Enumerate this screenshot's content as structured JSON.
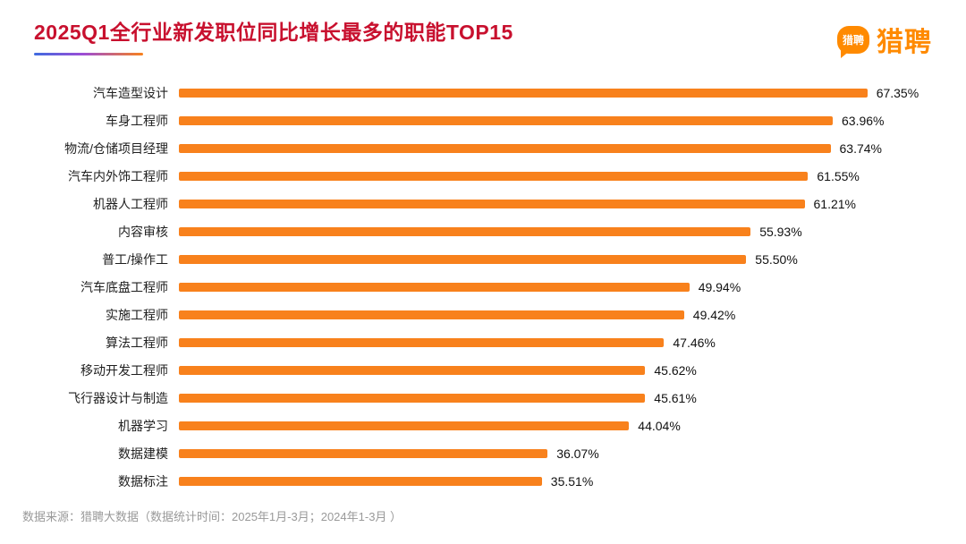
{
  "header": {
    "title": "2025Q1全行业新发职位同比增长最多的职能TOP15"
  },
  "brand": {
    "name": "猎聘",
    "bubble_label": "猎聘"
  },
  "colors": {
    "bar": "#F8811C",
    "title_red": "#C8102E",
    "brand_orange": "#FF8A00",
    "underline_gradient": [
      "#3E6BE0",
      "#9C4DD6",
      "#F8811C"
    ],
    "category_text": "#1F1F1F",
    "source_gray": "#999999"
  },
  "chart_data": {
    "type": "bar",
    "orientation": "horizontal",
    "title": "2025Q1全行业新发职位同比增长最多的职能TOP15",
    "categories": [
      "汽车造型设计",
      "车身工程师",
      "物流/仓储项目经理",
      "汽车内外饰工程师",
      "机器人工程师",
      "内容审核",
      "普工/操作工",
      "汽车底盘工程师",
      "实施工程师",
      "算法工程师",
      "移动开发工程师",
      "飞行器设计与制造",
      "机器学习",
      "数据建模",
      "数据标注"
    ],
    "values": [
      67.35,
      63.96,
      63.74,
      61.55,
      61.21,
      55.93,
      55.5,
      49.94,
      49.42,
      47.46,
      45.62,
      45.61,
      44.04,
      36.07,
      35.51
    ],
    "value_labels": [
      "67.35%",
      "63.96%",
      "63.74%",
      "61.55%",
      "61.21%",
      "55.93%",
      "55.50%",
      "49.94%",
      "49.42%",
      "47.46%",
      "45.62%",
      "45.61%",
      "44.04%",
      "36.07%",
      "35.51%"
    ],
    "xlabel": "",
    "ylabel": "",
    "xlim": [
      0,
      70
    ],
    "grid": false,
    "legend": null,
    "bar_color": "#F8811C"
  },
  "footer": {
    "source_text": "数据来源：猎聘大数据（数据统计时间：2025年1月-3月；2024年1-3月 ）"
  }
}
